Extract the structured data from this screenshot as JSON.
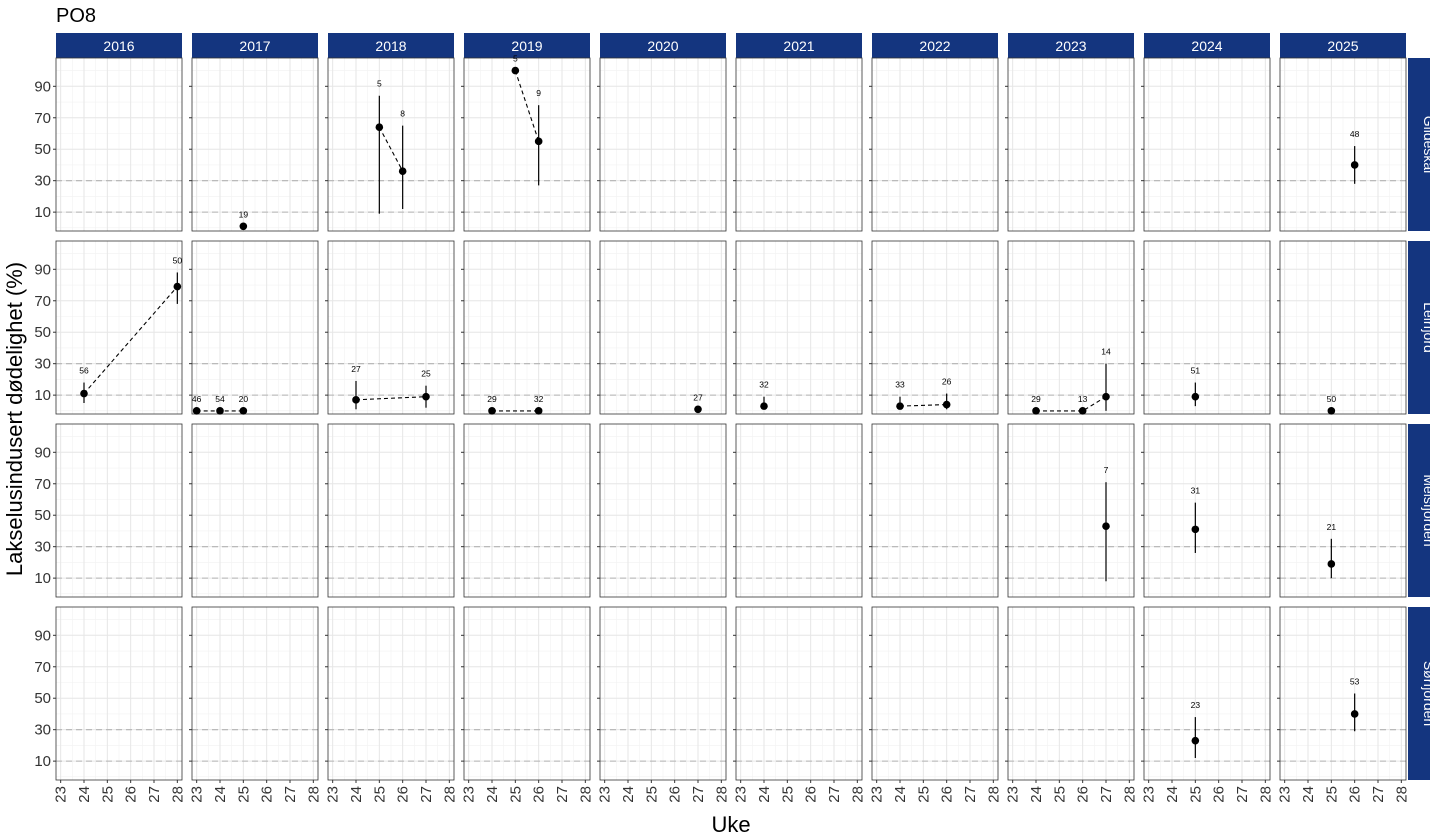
{
  "chart_data": {
    "type": "scatter",
    "title": "PO8",
    "xlabel": "Uke",
    "ylabel": "Lakselusindusert dødelighet (%)",
    "years": [
      "2016",
      "2017",
      "2018",
      "2019",
      "2020",
      "2021",
      "2022",
      "2023",
      "2024",
      "2025"
    ],
    "regions": [
      "Gildeskål",
      "Leirfjord",
      "Meisfjorden",
      "Sørfjorden"
    ],
    "x_ticks": [
      23,
      24,
      25,
      26,
      27,
      28
    ],
    "y_ticks": [
      10,
      30,
      50,
      70,
      90
    ],
    "xlim": [
      22.8,
      28.2
    ],
    "ylim": [
      -2,
      108
    ],
    "reference_lines": [
      10,
      30
    ],
    "colors": {
      "strip_bg": "#14357f",
      "strip_text": "#ffffff",
      "grid_major": "#e6e6e6",
      "grid_minor": "#f2f2f2",
      "reference_line": "#b3b3b3",
      "point": "#000000"
    },
    "points": [
      {
        "region": "Gildeskål",
        "year": "2017",
        "week": 25,
        "value": 1,
        "lo": 1,
        "hi": 1,
        "n": "19"
      },
      {
        "region": "Gildeskål",
        "year": "2018",
        "week": 25,
        "value": 64,
        "lo": 9,
        "hi": 84,
        "n": "5"
      },
      {
        "region": "Gildeskål",
        "year": "2018",
        "week": 26,
        "value": 36,
        "lo": 12,
        "hi": 65,
        "n": "8"
      },
      {
        "region": "Gildeskål",
        "year": "2019",
        "week": 25,
        "value": 100,
        "lo": 100,
        "hi": 100,
        "n": "5"
      },
      {
        "region": "Gildeskål",
        "year": "2019",
        "week": 26,
        "value": 55,
        "lo": 27,
        "hi": 78,
        "n": "9"
      },
      {
        "region": "Gildeskål",
        "year": "2025",
        "week": 26,
        "value": 40,
        "lo": 28,
        "hi": 52,
        "n": "48"
      },
      {
        "region": "Leirfjord",
        "year": "2016",
        "week": 24,
        "value": 11,
        "lo": 5,
        "hi": 18,
        "n": "56"
      },
      {
        "region": "Leirfjord",
        "year": "2016",
        "week": 28,
        "value": 79,
        "lo": 68,
        "hi": 88,
        "n": "50"
      },
      {
        "region": "Leirfjord",
        "year": "2017",
        "week": 23,
        "value": 0,
        "lo": 0,
        "hi": 0,
        "n": "46"
      },
      {
        "region": "Leirfjord",
        "year": "2017",
        "week": 24,
        "value": 0,
        "lo": 0,
        "hi": 0,
        "n": "54"
      },
      {
        "region": "Leirfjord",
        "year": "2017",
        "week": 25,
        "value": 0,
        "lo": 0,
        "hi": 0,
        "n": "20"
      },
      {
        "region": "Leirfjord",
        "year": "2018",
        "week": 24,
        "value": 7,
        "lo": 1,
        "hi": 19,
        "n": "27"
      },
      {
        "region": "Leirfjord",
        "year": "2018",
        "week": 27,
        "value": 9,
        "lo": 2,
        "hi": 16,
        "n": "25"
      },
      {
        "region": "Leirfjord",
        "year": "2019",
        "week": 24,
        "value": 0,
        "lo": 0,
        "hi": 0,
        "n": "29"
      },
      {
        "region": "Leirfjord",
        "year": "2019",
        "week": 26,
        "value": 0,
        "lo": 0,
        "hi": 0,
        "n": "32"
      },
      {
        "region": "Leirfjord",
        "year": "2020",
        "week": 27,
        "value": 1,
        "lo": 1,
        "hi": 1,
        "n": "27"
      },
      {
        "region": "Leirfjord",
        "year": "2021",
        "week": 24,
        "value": 3,
        "lo": 1,
        "hi": 9,
        "n": "32"
      },
      {
        "region": "Leirfjord",
        "year": "2022",
        "week": 24,
        "value": 3,
        "lo": 1,
        "hi": 9,
        "n": "33"
      },
      {
        "region": "Leirfjord",
        "year": "2022",
        "week": 26,
        "value": 4,
        "lo": 1,
        "hi": 11,
        "n": "26"
      },
      {
        "region": "Leirfjord",
        "year": "2023",
        "week": 24,
        "value": 0,
        "lo": 0,
        "hi": 0,
        "n": "29"
      },
      {
        "region": "Leirfjord",
        "year": "2023",
        "week": 26,
        "value": 0,
        "lo": 0,
        "hi": 0,
        "n": "13"
      },
      {
        "region": "Leirfjord",
        "year": "2023",
        "week": 27,
        "value": 9,
        "lo": 0,
        "hi": 30,
        "n": "14"
      },
      {
        "region": "Leirfjord",
        "year": "2024",
        "week": 25,
        "value": 9,
        "lo": 3,
        "hi": 18,
        "n": "51"
      },
      {
        "region": "Leirfjord",
        "year": "2025",
        "week": 25,
        "value": 0,
        "lo": 0,
        "hi": 0,
        "n": "50"
      },
      {
        "region": "Meisfjorden",
        "year": "2023",
        "week": 27,
        "value": 43,
        "lo": 8,
        "hi": 71,
        "n": "7"
      },
      {
        "region": "Meisfjorden",
        "year": "2024",
        "week": 25,
        "value": 41,
        "lo": 26,
        "hi": 58,
        "n": "31"
      },
      {
        "region": "Meisfjorden",
        "year": "2025",
        "week": 25,
        "value": 19,
        "lo": 10,
        "hi": 35,
        "n": "21"
      },
      {
        "region": "Sørfjorden",
        "year": "2024",
        "week": 25,
        "value": 23,
        "lo": 12,
        "hi": 38,
        "n": "23"
      },
      {
        "region": "Sørfjorden",
        "year": "2025",
        "week": 26,
        "value": 40,
        "lo": 29,
        "hi": 53,
        "n": "53"
      }
    ]
  }
}
